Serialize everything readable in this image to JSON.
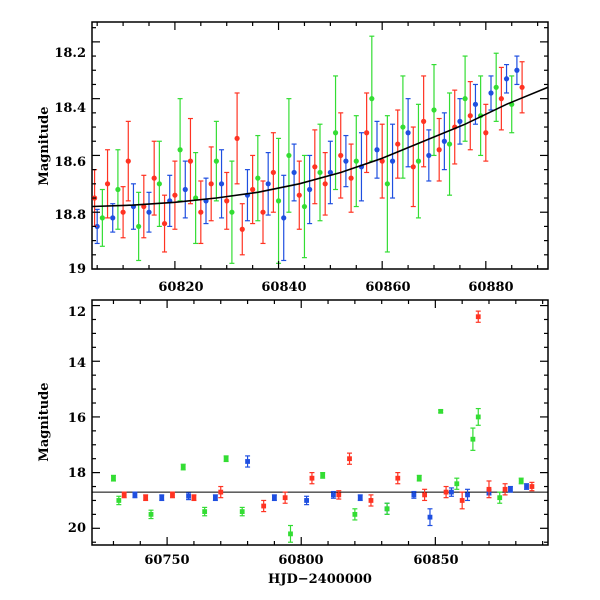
{
  "chart_data": [
    {
      "type": "scatter",
      "panel": "top",
      "xlabel": "",
      "ylabel": "Magnitude",
      "xlim": [
        60804,
        60892
      ],
      "ylim": [
        19.0,
        18.13
      ],
      "x_ticks": [
        "60820",
        "60840",
        "60860",
        "60880"
      ],
      "y_ticks": [
        "18.2",
        "18.4",
        "18.6",
        "18.8",
        "19"
      ],
      "colors": {
        "blue": "#1f4fe0",
        "green": "#33dd33",
        "red": "#ff3322",
        "curve": "#000000"
      },
      "series": [
        {
          "color": "#1f4fe0",
          "x": [
            60805,
            60808,
            60812,
            60815,
            60819,
            60822,
            60826,
            60829,
            60834,
            60838,
            60841,
            60843,
            60846,
            60850,
            60853,
            60856,
            60859,
            60862,
            60865,
            60869,
            60872,
            60875,
            60878,
            60881,
            60884,
            60886
          ],
          "y": [
            18.85,
            18.82,
            18.78,
            18.8,
            18.76,
            18.72,
            18.76,
            18.7,
            18.74,
            18.7,
            18.82,
            18.66,
            18.72,
            18.66,
            18.62,
            18.64,
            18.58,
            18.62,
            18.52,
            18.6,
            18.55,
            18.48,
            18.42,
            18.38,
            18.33,
            18.3
          ],
          "err": [
            0.06,
            0.05,
            0.08,
            0.07,
            0.09,
            0.1,
            0.08,
            0.12,
            0.09,
            0.11,
            0.15,
            0.1,
            0.12,
            0.11,
            0.09,
            0.12,
            0.1,
            0.13,
            0.12,
            0.09,
            0.1,
            0.08,
            0.07,
            0.06,
            0.05,
            0.05
          ]
        },
        {
          "color": "#33dd33",
          "x": [
            60806,
            60809,
            60813,
            60817,
            60821,
            60824,
            60828,
            60831,
            60836,
            60840,
            60842,
            60845,
            60848,
            60851,
            60855,
            60858,
            60861,
            60864,
            60867,
            60870,
            60873,
            60876,
            60879,
            60882,
            60885
          ],
          "y": [
            18.82,
            18.72,
            18.85,
            18.7,
            18.58,
            18.75,
            18.62,
            18.8,
            18.68,
            18.76,
            18.6,
            18.78,
            18.66,
            18.52,
            18.62,
            18.4,
            18.7,
            18.5,
            18.62,
            18.44,
            18.56,
            18.4,
            18.46,
            18.36,
            18.42
          ],
          "err": [
            0.1,
            0.14,
            0.12,
            0.15,
            0.18,
            0.16,
            0.14,
            0.18,
            0.15,
            0.22,
            0.2,
            0.18,
            0.17,
            0.2,
            0.16,
            0.22,
            0.24,
            0.18,
            0.2,
            0.16,
            0.18,
            0.15,
            0.14,
            0.12,
            0.1
          ]
        },
        {
          "color": "#ff3322",
          "x": [
            60804.5,
            60807,
            60810,
            60811,
            60814,
            60816,
            60818,
            60820,
            60823,
            60825,
            60827,
            60830,
            60832,
            60833,
            60835,
            60837,
            60839,
            60844,
            60847,
            60849,
            60852,
            60854,
            60857,
            60860,
            60863,
            60866,
            60868,
            60871,
            60874,
            60877,
            60880,
            60883,
            60887
          ],
          "y": [
            18.75,
            18.7,
            18.8,
            18.62,
            18.78,
            18.68,
            18.84,
            18.74,
            18.62,
            18.8,
            18.7,
            18.76,
            18.54,
            18.86,
            18.72,
            18.8,
            18.66,
            18.74,
            18.64,
            18.7,
            18.6,
            18.68,
            18.52,
            18.62,
            18.56,
            18.64,
            18.48,
            18.58,
            18.5,
            18.46,
            18.52,
            18.4,
            18.36
          ],
          "err": [
            0.1,
            0.12,
            0.09,
            0.14,
            0.11,
            0.13,
            0.1,
            0.12,
            0.15,
            0.11,
            0.13,
            0.1,
            0.16,
            0.09,
            0.12,
            0.11,
            0.14,
            0.12,
            0.13,
            0.11,
            0.15,
            0.12,
            0.14,
            0.13,
            0.12,
            0.14,
            0.16,
            0.11,
            0.13,
            0.12,
            0.1,
            0.11,
            0.09
          ]
        }
      ],
      "curve": {
        "x": [
          60804,
          60812,
          60820,
          60828,
          60836,
          60844,
          60852,
          60860,
          60868,
          60876,
          60884,
          60892
        ],
        "y": [
          18.78,
          18.775,
          18.765,
          18.75,
          18.73,
          18.7,
          18.66,
          18.61,
          18.55,
          18.49,
          18.42,
          18.36
        ]
      }
    },
    {
      "type": "scatter",
      "panel": "bottom",
      "xlabel": "HJD−2400000",
      "ylabel": "Magnitude",
      "xlim": [
        60722,
        60892
      ],
      "ylim": [
        20.6,
        11.8
      ],
      "x_ticks": [
        "60750",
        "60800",
        "60850"
      ],
      "y_ticks": [
        "12",
        "14",
        "16",
        "18",
        "20"
      ],
      "colors": {
        "blue": "#1f4fe0",
        "green": "#33dd33",
        "red": "#ff3322",
        "line": "#000000"
      },
      "series": [
        {
          "color": "#1f4fe0",
          "x": [
            60738,
            60748,
            60758,
            60768,
            60780,
            60790,
            60802,
            60812,
            60822,
            60832,
            60842,
            60848,
            60856,
            60862,
            60870,
            60878,
            60884
          ],
          "y": [
            18.8,
            18.9,
            18.85,
            18.9,
            17.6,
            18.9,
            19.0,
            18.8,
            18.9,
            19.3,
            18.8,
            19.6,
            18.7,
            18.8,
            18.7,
            18.6,
            18.5
          ],
          "err": [
            0.1,
            0.1,
            0.12,
            0.1,
            0.2,
            0.1,
            0.15,
            0.12,
            0.1,
            0.2,
            0.12,
            0.3,
            0.15,
            0.2,
            0.1,
            0.1,
            0.1
          ]
        },
        {
          "color": "#33dd33",
          "x": [
            60730,
            60732,
            60744,
            60756,
            60764,
            60772,
            60778,
            60796,
            60808,
            60820,
            60832,
            60844,
            60852,
            60858,
            60864,
            60866,
            60874,
            60882
          ],
          "y": [
            18.2,
            19.0,
            19.5,
            17.8,
            19.4,
            17.5,
            19.4,
            20.2,
            18.1,
            19.5,
            19.3,
            18.2,
            15.8,
            18.4,
            16.8,
            16.0,
            18.9,
            18.3
          ],
          "err": [
            0.1,
            0.15,
            0.15,
            0.1,
            0.15,
            0.1,
            0.15,
            0.3,
            0.1,
            0.2,
            0.2,
            0.1,
            0.05,
            0.2,
            0.4,
            0.3,
            0.2,
            0.1
          ]
        },
        {
          "color": "#ff3322",
          "x": [
            60734,
            60742,
            60752,
            60760,
            60770,
            60786,
            60794,
            60804,
            60814,
            60818,
            60826,
            60836,
            60846,
            60854,
            60860,
            60866,
            60870,
            60876,
            60886
          ],
          "y": [
            18.8,
            18.9,
            18.8,
            18.9,
            18.7,
            19.2,
            18.9,
            18.2,
            18.8,
            17.5,
            19.0,
            18.2,
            18.8,
            18.7,
            19.0,
            12.4,
            18.6,
            18.6,
            18.5
          ],
          "err": [
            0.1,
            0.1,
            0.1,
            0.1,
            0.2,
            0.2,
            0.2,
            0.2,
            0.15,
            0.2,
            0.2,
            0.2,
            0.2,
            0.2,
            0.3,
            0.2,
            0.3,
            0.2,
            0.15
          ]
        }
      ],
      "ref_line": {
        "y": 18.7
      }
    }
  ]
}
